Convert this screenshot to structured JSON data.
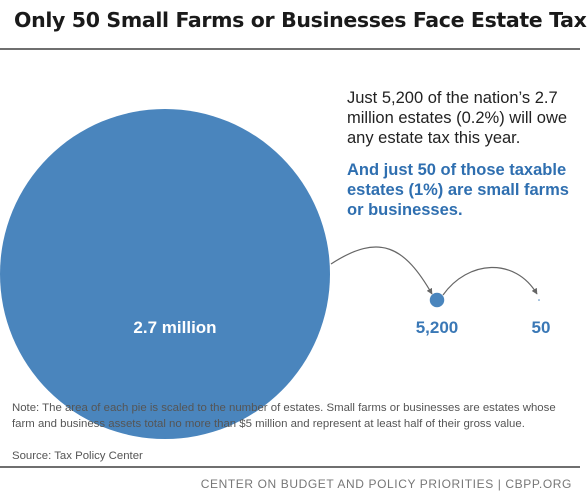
{
  "title": "Only 50 Small Farms or Businesses Face Estate Tax",
  "annotation": {
    "plain": "Just 5,200 of the nation’s 2.7 million estates (0.2%) will owe any estate tax this year.",
    "highlight": "And just 50 of those taxable estates (1%) are small farms or businesses."
  },
  "chart_data": {
    "type": "bubble",
    "title": "Only 50 Small Farms or Businesses Face Estate Tax",
    "scaling": "area proportional to number of estates",
    "items": [
      {
        "value": 2700000,
        "label": "2.7 million"
      },
      {
        "value": 5200,
        "label": "5,200"
      },
      {
        "value": 50,
        "label": "50"
      }
    ],
    "colors": {
      "circle": "#4a85bd",
      "label_inside": "#ffffff",
      "label_outside": "#3a78b6",
      "arrow": "#666666"
    }
  },
  "footnote": "Note: The area of each pie is scaled to the number of estates.  Small farms or businesses are estates whose farm and business assets total no more than $5 million and represent at least half of their gross value.",
  "source": "Source: Tax Policy Center",
  "credit": "CENTER ON BUDGET AND POLICY PRIORITIES | CBPP.ORG"
}
